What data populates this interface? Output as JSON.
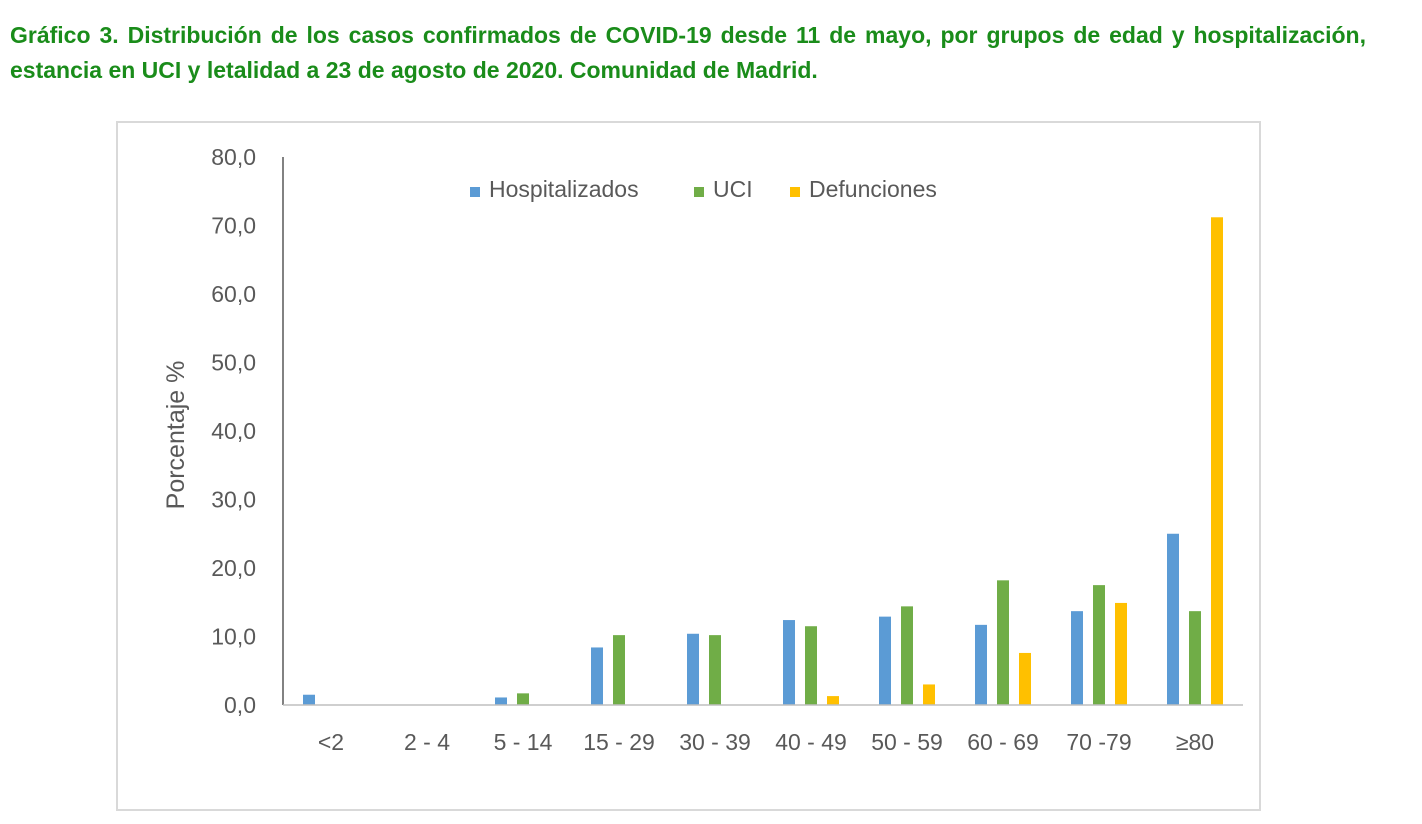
{
  "heading": {
    "text": "Gráfico 3. Distribución de los casos confirmados de COVID-19 desde 11 de mayo, por grupos de edad y hospitalización, estancia en UCI y letalidad a 23 de agosto de 2020. Comunidad de Madrid."
  },
  "chart_data": {
    "type": "bar",
    "title": "Gráfico 3. Distribución de los casos confirmados de COVID-19 desde 11 de mayo, por grupos de edad y hospitalización, estancia en UCI y letalidad a 23 de agosto de 2020. Comunidad de Madrid.",
    "xlabel": "",
    "ylabel": "Porcentaje %",
    "ylim": [
      0,
      80
    ],
    "yticks": [
      "0,0",
      "10,0",
      "20,0",
      "30,0",
      "40,0",
      "50,0",
      "60,0",
      "70,0",
      "80,0"
    ],
    "grid": false,
    "legend_position": "top",
    "categories": [
      "<2",
      "2 - 4",
      "5 - 14",
      "15 - 29",
      "30 - 39",
      "40 - 49",
      "50 - 59",
      "60 - 69",
      "70 -79",
      "≥80"
    ],
    "series": [
      {
        "name": "Hospitalizados",
        "color": "#5b9bd5",
        "values": [
          1.5,
          0.0,
          1.1,
          8.4,
          10.4,
          12.4,
          12.9,
          11.7,
          13.7,
          25.0
        ]
      },
      {
        "name": "UCI",
        "color": "#70ad47",
        "values": [
          0.0,
          0.0,
          1.7,
          10.2,
          10.2,
          11.5,
          14.4,
          18.2,
          17.5,
          13.7
        ]
      },
      {
        "name": "Defunciones",
        "color": "#ffc000",
        "values": [
          0.0,
          0.0,
          0.0,
          0.0,
          0.0,
          1.3,
          3.0,
          7.6,
          14.9,
          71.2
        ]
      }
    ]
  }
}
